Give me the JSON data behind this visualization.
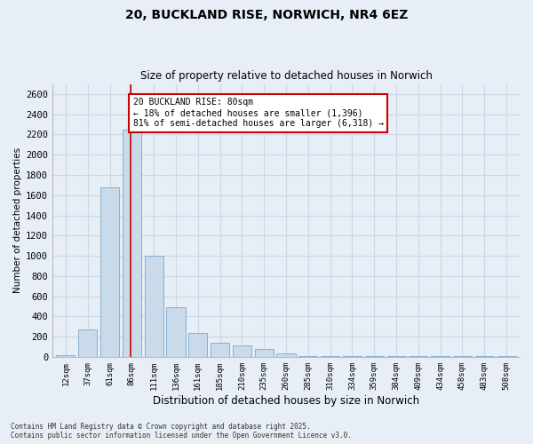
{
  "title_line1": "20, BUCKLAND RISE, NORWICH, NR4 6EZ",
  "title_line2": "Size of property relative to detached houses in Norwich",
  "xlabel": "Distribution of detached houses by size in Norwich",
  "ylabel": "Number of detached properties",
  "bar_labels": [
    "12sqm",
    "37sqm",
    "61sqm",
    "86sqm",
    "111sqm",
    "136sqm",
    "161sqm",
    "185sqm",
    "210sqm",
    "235sqm",
    "260sqm",
    "285sqm",
    "310sqm",
    "334sqm",
    "359sqm",
    "384sqm",
    "409sqm",
    "434sqm",
    "458sqm",
    "483sqm",
    "508sqm"
  ],
  "bar_values": [
    15,
    270,
    1680,
    2250,
    1000,
    490,
    235,
    140,
    110,
    75,
    30,
    10,
    10,
    10,
    10,
    10,
    10,
    10,
    10,
    10,
    10
  ],
  "bar_color": "#c9daea",
  "bar_edge_color": "#7aa8cc",
  "vline_color": "#cc0000",
  "annotation_text": "20 BUCKLAND RISE: 80sqm\n← 18% of detached houses are smaller (1,396)\n81% of semi-detached houses are larger (6,318) →",
  "annotation_box_color": "#ffffff",
  "annotation_box_edge": "#cc0000",
  "ylim": [
    0,
    2700
  ],
  "yticks": [
    0,
    200,
    400,
    600,
    800,
    1000,
    1200,
    1400,
    1600,
    1800,
    2000,
    2200,
    2400,
    2600
  ],
  "grid_color": "#c8d8e8",
  "footnote_line1": "Contains HM Land Registry data © Crown copyright and database right 2025.",
  "footnote_line2": "Contains public sector information licensed under the Open Government Licence v3.0.",
  "bg_color": "#e8eef5"
}
